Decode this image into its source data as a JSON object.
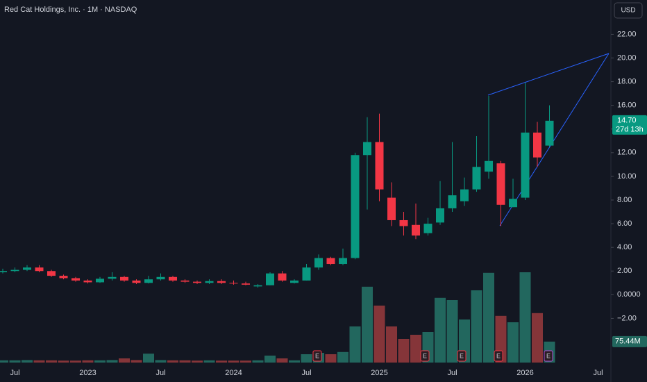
{
  "chart_data": {
    "type": "candlestick",
    "title": "Red Cat Holdings, Inc. · 1M · NASDAQ",
    "currency": "USD",
    "categories": [
      null,
      "Jul",
      null,
      null,
      null,
      null,
      null,
      "2023",
      null,
      null,
      null,
      null,
      null,
      "Jul",
      null,
      null,
      null,
      null,
      null,
      "2024",
      null,
      null,
      null,
      null,
      null,
      "Jul",
      null,
      null,
      null,
      null,
      null,
      "2025",
      null,
      null,
      null,
      null,
      null,
      "Jul",
      null,
      null,
      null,
      null,
      null,
      "2026",
      null,
      null,
      null,
      null,
      null,
      "Jul"
    ],
    "open": [
      1.9,
      2.0,
      2.1,
      2.3,
      2.0,
      1.6,
      1.4,
      1.2,
      1.05,
      1.35,
      1.5,
      1.2,
      1.0,
      1.3,
      1.5,
      1.2,
      1.1,
      1.0,
      1.15,
      1.0,
      0.95,
      0.7,
      0.8,
      1.8,
      1.0,
      1.2,
      2.3,
      3.1,
      2.6,
      3.1,
      11.8,
      12.9,
      8.2,
      6.3,
      5.9,
      5.2,
      6.1,
      7.3,
      7.9,
      8.9,
      10.4,
      11.1,
      7.4,
      8.2,
      13.7,
      12.6,
      null,
      null,
      null,
      null
    ],
    "high": [
      2.2,
      2.3,
      2.5,
      2.5,
      2.1,
      1.7,
      1.5,
      1.3,
      1.5,
      1.9,
      1.6,
      1.3,
      1.6,
      1.8,
      1.6,
      1.3,
      1.2,
      1.3,
      1.3,
      1.2,
      1.1,
      0.9,
      1.9,
      2.0,
      1.3,
      2.6,
      3.4,
      3.2,
      3.9,
      12.0,
      15.0,
      15.3,
      9.5,
      7.0,
      7.7,
      6.5,
      9.6,
      12.9,
      9.9,
      13.4,
      16.8,
      11.3,
      9.8,
      17.9,
      14.6,
      16.0,
      null,
      null,
      null,
      null
    ],
    "low": [
      1.8,
      1.9,
      2.0,
      1.9,
      1.5,
      1.3,
      1.1,
      0.95,
      1.0,
      1.2,
      1.1,
      0.9,
      0.95,
      1.2,
      1.1,
      1.0,
      0.9,
      0.9,
      0.9,
      0.85,
      0.8,
      0.6,
      0.8,
      1.1,
      0.95,
      1.2,
      2.1,
      2.5,
      2.5,
      3.0,
      7.2,
      7.9,
      5.8,
      5.0,
      4.7,
      5.0,
      5.9,
      7.0,
      7.5,
      8.7,
      9.8,
      5.8,
      7.4,
      8.0,
      10.8,
      12.5,
      null,
      null,
      null,
      null
    ],
    "close": [
      2.0,
      2.1,
      2.3,
      2.0,
      1.6,
      1.4,
      1.2,
      1.05,
      1.35,
      1.5,
      1.2,
      1.0,
      1.3,
      1.5,
      1.2,
      1.1,
      1.0,
      1.15,
      1.0,
      0.95,
      0.85,
      0.8,
      1.8,
      1.2,
      1.2,
      2.3,
      3.1,
      2.6,
      3.1,
      11.8,
      12.9,
      8.9,
      6.3,
      5.8,
      5.0,
      6.0,
      7.3,
      8.4,
      8.9,
      10.8,
      11.3,
      7.6,
      8.1,
      13.7,
      11.6,
      14.7,
      null,
      null,
      null,
      null
    ],
    "volume": [
      8,
      8,
      9,
      8,
      8,
      7,
      7,
      8,
      8,
      9,
      15,
      9,
      32,
      9,
      8,
      8,
      7,
      8,
      7,
      7,
      7,
      8,
      25,
      15,
      8,
      30,
      35,
      30,
      38,
      130,
      273,
      205,
      130,
      85,
      100,
      110,
      233,
      225,
      155,
      260,
      323,
      168,
      145,
      325,
      178,
      75.44,
      null,
      null,
      null,
      null
    ],
    "up_color": "#089981",
    "down_color": "#f23645",
    "volume_up_color": "#22675e",
    "volume_down_color": "#853539",
    "ylim": [
      -6.2,
      24.9
    ],
    "yticks": [
      {
        "value": 22,
        "label": "22.00"
      },
      {
        "value": 20,
        "label": "20.00"
      },
      {
        "value": 18,
        "label": "18.00"
      },
      {
        "value": 16,
        "label": "16.00"
      },
      {
        "value": 14,
        "label": "14.00"
      },
      {
        "value": 12,
        "label": "12.00"
      },
      {
        "value": 10,
        "label": "10.00"
      },
      {
        "value": 8,
        "label": "8.00"
      },
      {
        "value": 6,
        "label": "6.00"
      },
      {
        "value": 4,
        "label": "4.00"
      },
      {
        "value": 2,
        "label": "2.00"
      },
      {
        "value": 0,
        "label": "0.0000"
      },
      {
        "value": -2,
        "label": "−2.00"
      }
    ],
    "volume_ylim": [
      0,
      400
    ],
    "last_price": {
      "value": 14.7,
      "label": "14.70",
      "countdown": "27d 13h"
    },
    "last_volume_label": "75.44M",
    "earnings_marker": "E"
  }
}
